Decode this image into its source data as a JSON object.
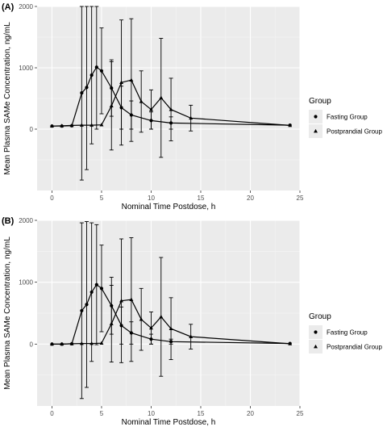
{
  "chart_data": [
    {
      "type": "line",
      "panel": "(A)",
      "xlabel": "Nominal Time Postdose, h",
      "ylabel": "Mean Plasma SAMe Concentration, ng/mL",
      "xlim": [
        -1.5,
        25
      ],
      "ylim": [
        -1000,
        2000
      ],
      "x_ticks": [
        0,
        5,
        10,
        15,
        20,
        25
      ],
      "y_ticks": [
        0,
        1000,
        2000
      ],
      "grid": true,
      "legend": {
        "title": "Group",
        "placement": "right",
        "entries": [
          "Fasting Group",
          "Postprandial Group"
        ]
      },
      "series": [
        {
          "name": "Fasting Group",
          "marker": "circle",
          "x": [
            0,
            1,
            2,
            3,
            3.5,
            4,
            4.5,
            5,
            6,
            7,
            8,
            10,
            12,
            24
          ],
          "y": [
            50,
            50,
            55,
            590,
            680,
            880,
            1010,
            950,
            670,
            350,
            230,
            140,
            100,
            65
          ],
          "error": [
            0,
            0,
            0,
            1420,
            1340,
            1120,
            1010,
            700,
            460,
            350,
            230,
            140,
            100,
            0
          ]
        },
        {
          "name": "Postprandial Group",
          "marker": "triangle",
          "x": [
            0,
            1,
            2,
            3,
            4,
            5,
            6,
            7,
            8,
            9,
            10,
            11,
            12,
            14,
            24
          ],
          "y": [
            50,
            55,
            60,
            65,
            65,
            70,
            380,
            760,
            800,
            450,
            320,
            510,
            320,
            180,
            60
          ],
          "error": [
            0,
            0,
            0,
            0,
            0,
            0,
            720,
            1020,
            1000,
            500,
            320,
            970,
            510,
            210,
            0
          ]
        }
      ]
    },
    {
      "type": "line",
      "panel": "(B)",
      "xlabel": "Nominal Time Postdose, h",
      "ylabel": "Mean Plasma SAMe Concentration, ng/mL",
      "xlim": [
        -1.5,
        25
      ],
      "ylim": [
        -1000,
        2000
      ],
      "x_ticks": [
        0,
        5,
        10,
        15,
        20,
        25
      ],
      "y_ticks": [
        0,
        1000,
        2000
      ],
      "grid": true,
      "legend": {
        "title": "Group",
        "placement": "right",
        "entries": [
          "Fasting Group",
          "Postprandial Group"
        ]
      },
      "series": [
        {
          "name": "Fasting Group",
          "marker": "circle",
          "x": [
            0,
            1,
            2,
            3,
            3.5,
            4,
            4.5,
            5,
            6,
            7,
            8,
            10,
            12,
            24
          ],
          "y": [
            0,
            0,
            5,
            540,
            640,
            840,
            960,
            900,
            620,
            300,
            180,
            80,
            40,
            10
          ],
          "error": [
            0,
            0,
            0,
            1420,
            1340,
            1120,
            970,
            700,
            460,
            300,
            180,
            80,
            40,
            0
          ]
        },
        {
          "name": "Postprandial Group",
          "marker": "triangle",
          "x": [
            0,
            1,
            2,
            3,
            4,
            5,
            6,
            7,
            8,
            9,
            10,
            11,
            12,
            14,
            24
          ],
          "y": [
            0,
            0,
            5,
            10,
            10,
            15,
            330,
            700,
            720,
            400,
            260,
            440,
            250,
            120,
            5
          ],
          "error": [
            0,
            0,
            0,
            0,
            0,
            0,
            620,
            1000,
            1000,
            500,
            260,
            960,
            500,
            200,
            0
          ]
        }
      ]
    }
  ]
}
